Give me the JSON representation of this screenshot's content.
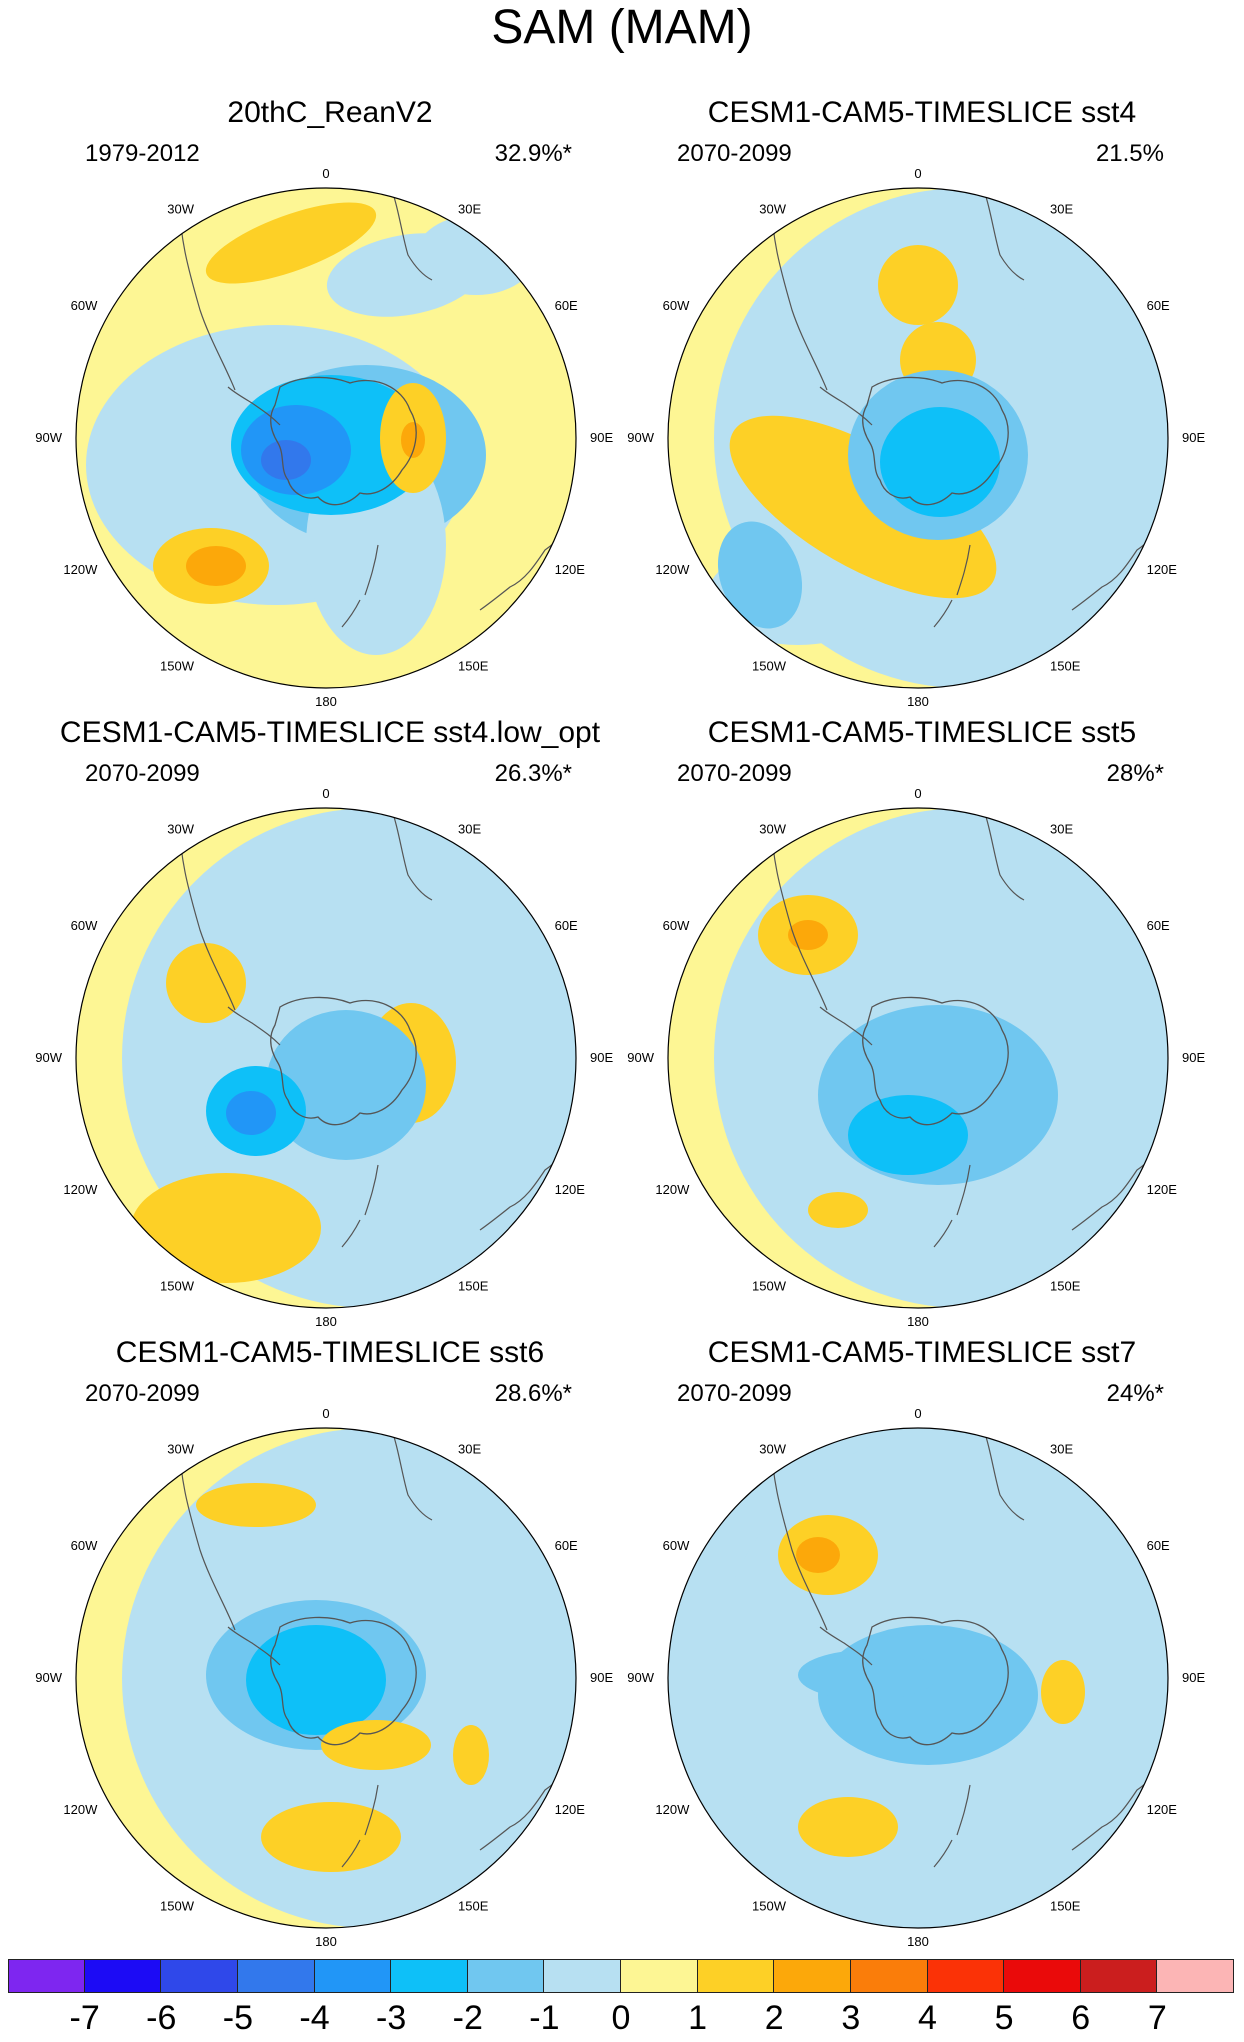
{
  "title": "SAM (MAM)",
  "panels": [
    {
      "title": "20thC_ReanV2",
      "period": "1979-2012",
      "variance": "32.9%*",
      "pattern": 0
    },
    {
      "title": "CESM1-CAM5-TIMESLICE sst4",
      "period": "2070-2099",
      "variance": "21.5%",
      "pattern": 1
    },
    {
      "title": "CESM1-CAM5-TIMESLICE sst4.low_opt",
      "period": "2070-2099",
      "variance": "26.3%*",
      "pattern": 2
    },
    {
      "title": "CESM1-CAM5-TIMESLICE sst5",
      "period": "2070-2099",
      "variance": "28%*",
      "pattern": 3
    },
    {
      "title": "CESM1-CAM5-TIMESLICE sst6",
      "period": "2070-2099",
      "variance": "28.6%*",
      "pattern": 4
    },
    {
      "title": "CESM1-CAM5-TIMESLICE sst7",
      "period": "2070-2099",
      "variance": "24%*",
      "pattern": 5
    }
  ],
  "longitude_labels": [
    {
      "label": "0",
      "deg": 0
    },
    {
      "label": "30E",
      "deg": 30
    },
    {
      "label": "60E",
      "deg": 60
    },
    {
      "label": "90E",
      "deg": 90
    },
    {
      "label": "120E",
      "deg": 120
    },
    {
      "label": "150E",
      "deg": 150
    },
    {
      "label": "180",
      "deg": 180
    },
    {
      "label": "150W",
      "deg": 210
    },
    {
      "label": "120W",
      "deg": 240
    },
    {
      "label": "90W",
      "deg": 270
    },
    {
      "label": "60W",
      "deg": 300
    },
    {
      "label": "30W",
      "deg": 330
    }
  ],
  "colorbar": {
    "labels": [
      "-7",
      "-6",
      "-5",
      "-4",
      "-3",
      "-2",
      "-1",
      "0",
      "1",
      "2",
      "3",
      "4",
      "5",
      "6",
      "7"
    ],
    "colors": [
      "#7e26f0",
      "#1c0bf5",
      "#2f48ea",
      "#3278ec",
      "#2196f7",
      "#0ec0f8",
      "#70c7f0",
      "#b7e0f2",
      "#fdf694",
      "#fdd026",
      "#fca80a",
      "#fa7d0a",
      "#fb3206",
      "#ea0a0a",
      "#cb1e1e",
      "#fcb5b5"
    ]
  },
  "colors": {
    "background": "#fdf694",
    "land_line": "#555555"
  }
}
